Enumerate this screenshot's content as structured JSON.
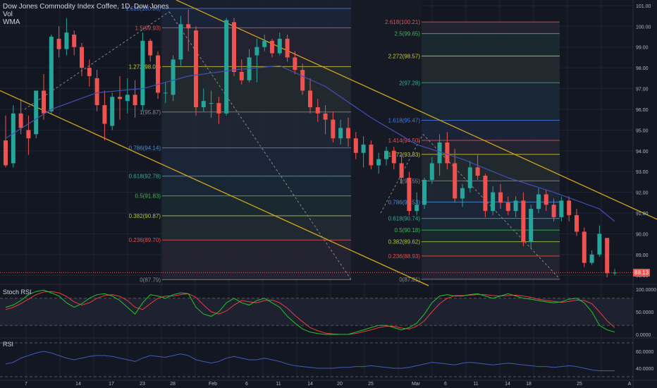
{
  "header": {
    "title": "Dow Jones Commodity Index Coffee, 1D, Dow Jones",
    "indicators": [
      "Vol",
      "WMA"
    ]
  },
  "colors": {
    "background": "#131722",
    "up": "#26a69a",
    "down": "#ef5350",
    "grid": "#1f2433",
    "axis_text": "#b2b5be",
    "channel": "#d4a71c",
    "wma": "#3f51b5",
    "stoch_k": "#26c726",
    "stoch_d": "#ef3b3b",
    "rsi": "#3f5cb5"
  },
  "price_axis": {
    "ticks": [
      "101.00",
      "100.00",
      "99.00",
      "98.00",
      "97.00",
      "96.00",
      "95.00",
      "94.00",
      "93.00",
      "92.00",
      "91.00",
      "90.00",
      "89.00",
      "88.00"
    ],
    "last_price": "88.13"
  },
  "stoch_axis": {
    "ticks": [
      "100.0000",
      "50.0000",
      "0.0000"
    ]
  },
  "rsi_axis": {
    "ticks": [
      "60.0000",
      "40.0000"
    ]
  },
  "time_axis": {
    "labels": [
      "7",
      "14",
      "17",
      "23",
      "28",
      "Feb",
      "6",
      "11",
      "14",
      "20",
      "25",
      "Mar",
      "6",
      "11",
      "14",
      "18",
      "25",
      "A"
    ]
  },
  "panes": {
    "stoch_label": "Stoch RSI",
    "rsi_label": "RSI"
  },
  "fib_left": {
    "levels": [
      {
        "label": "1.618(100.86)",
        "value": 100.86,
        "color": "#4a78d6"
      },
      {
        "label": "1.5(99.93)",
        "value": 99.93,
        "color": "#e05252"
      },
      {
        "label": "1.272(98.06)",
        "value": 98.06,
        "color": "#c8c83a"
      },
      {
        "label": "1(95.87)",
        "value": 95.87,
        "color": "#888888"
      },
      {
        "label": "0.786(94.14)",
        "value": 94.14,
        "color": "#4a8fd6"
      },
      {
        "label": "0.618(92.78)",
        "value": 92.78,
        "color": "#2fb0a0"
      },
      {
        "label": "0.5(91.83)",
        "value": 91.83,
        "color": "#3cbf4a"
      },
      {
        "label": "0.382(90.87)",
        "value": 90.87,
        "color": "#a8c84a"
      },
      {
        "label": "0.236(89.70)",
        "value": 89.7,
        "color": "#e05252"
      },
      {
        "label": "0(87.79)",
        "value": 87.79,
        "color": "#888888"
      }
    ]
  },
  "fib_right": {
    "levels": [
      {
        "label": "2.618(100.21)",
        "value": 100.21,
        "color": "#e05252"
      },
      {
        "label": "2.5(99.65)",
        "value": 99.65,
        "color": "#3cbf4a"
      },
      {
        "label": "2.272(98.57)",
        "value": 98.57,
        "color": "#c8c83a"
      },
      {
        "label": "2(97.28)",
        "value": 97.28,
        "color": "#2fb0a0"
      },
      {
        "label": "1.618(95.47)",
        "value": 95.47,
        "color": "#4a78d6"
      },
      {
        "label": "1.414(94.50)",
        "value": 94.5,
        "color": "#e05252"
      },
      {
        "label": "1.272(93.83)",
        "value": 93.83,
        "color": "#c8c83a"
      },
      {
        "label": "1(92.55)",
        "value": 92.55,
        "color": "#888888"
      },
      {
        "label": "0.786(91.53)",
        "value": 91.53,
        "color": "#4a8fd6"
      },
      {
        "label": "0.618(90.74)",
        "value": 90.74,
        "color": "#2fb0a0"
      },
      {
        "label": "0.5(90.18)",
        "value": 90.18,
        "color": "#3cbf4a"
      },
      {
        "label": "0.382(89.62)",
        "value": 89.62,
        "color": "#a8c84a"
      },
      {
        "label": "0.236(88.93)",
        "value": 88.93,
        "color": "#e05252"
      },
      {
        "label": "0(87.81)",
        "value": 87.81,
        "color": "#888888"
      }
    ]
  },
  "chart_data": {
    "type": "candlestick",
    "title": "Dow Jones Commodity Index Coffee, 1D, Dow Jones",
    "ylim": [
      87.6,
      101.2
    ],
    "candles": [
      [
        94.5,
        95.7,
        93.2,
        93.3
      ],
      [
        93.4,
        96.2,
        93.2,
        95.8
      ],
      [
        95.8,
        96.5,
        94.8,
        95.1
      ],
      [
        95.0,
        95.7,
        93.8,
        94.6
      ],
      [
        94.8,
        96.9,
        94.6,
        96.9
      ],
      [
        96.9,
        97.7,
        95.5,
        95.8
      ],
      [
        95.9,
        99.6,
        95.8,
        99.5
      ],
      [
        99.4,
        100.0,
        98.5,
        98.9
      ],
      [
        98.9,
        100.4,
        98.6,
        99.7
      ],
      [
        99.6,
        99.8,
        98.6,
        99.0
      ],
      [
        99.0,
        99.2,
        97.6,
        98.0
      ],
      [
        98.0,
        98.4,
        97.1,
        97.6
      ],
      [
        97.5,
        97.9,
        95.9,
        96.2
      ],
      [
        96.2,
        96.9,
        94.5,
        95.3
      ],
      [
        95.2,
        96.8,
        95.0,
        96.6
      ],
      [
        96.6,
        97.6,
        95.5,
        96.5
      ],
      [
        96.4,
        97.5,
        95.8,
        96.7
      ],
      [
        96.7,
        97.4,
        95.6,
        96.2
      ],
      [
        96.2,
        99.7,
        95.9,
        99.3
      ],
      [
        99.3,
        99.4,
        98.3,
        98.6
      ],
      [
        98.6,
        98.8,
        96.5,
        96.8
      ],
      [
        96.8,
        97.3,
        96.3,
        96.8
      ],
      [
        96.7,
        98.6,
        96.4,
        98.4
      ],
      [
        98.4,
        100.5,
        98.1,
        100.1
      ],
      [
        100.1,
        100.8,
        98.8,
        99.9
      ],
      [
        99.8,
        100.0,
        95.7,
        96.1
      ],
      [
        96.1,
        97.0,
        95.9,
        96.4
      ],
      [
        96.3,
        96.9,
        95.6,
        96.3
      ],
      [
        96.3,
        96.6,
        95.3,
        95.8
      ],
      [
        95.8,
        100.4,
        95.7,
        100.3
      ],
      [
        100.2,
        100.4,
        97.6,
        97.8
      ],
      [
        97.8,
        98.4,
        97.2,
        97.4
      ],
      [
        97.4,
        98.9,
        97.3,
        98.5
      ],
      [
        98.6,
        99.4,
        97.3,
        99.0
      ],
      [
        99.0,
        99.6,
        98.8,
        99.3
      ],
      [
        99.3,
        99.4,
        98.5,
        98.7
      ],
      [
        98.7,
        99.7,
        98.6,
        99.4
      ],
      [
        99.4,
        99.6,
        98.3,
        98.5
      ],
      [
        98.5,
        98.8,
        97.7,
        97.9
      ],
      [
        97.9,
        98.2,
        96.7,
        96.9
      ],
      [
        96.9,
        97.5,
        95.8,
        96.1
      ],
      [
        96.1,
        96.5,
        95.4,
        95.8
      ],
      [
        95.8,
        96.2,
        94.8,
        95.5
      ],
      [
        95.5,
        95.9,
        94.4,
        94.6
      ],
      [
        94.6,
        95.5,
        94.3,
        95.1
      ],
      [
        95.1,
        95.6,
        94.2,
        94.6
      ],
      [
        94.6,
        94.9,
        93.6,
        93.9
      ],
      [
        93.9,
        94.7,
        93.2,
        94.3
      ],
      [
        94.3,
        94.5,
        93.1,
        93.3
      ],
      [
        93.3,
        93.9,
        92.9,
        93.6
      ],
      [
        93.6,
        94.2,
        93.3,
        94.0
      ],
      [
        94.0,
        94.2,
        93.1,
        93.4
      ],
      [
        93.4,
        93.8,
        92.4,
        92.7
      ],
      [
        92.7,
        93.0,
        90.9,
        91.1
      ],
      [
        91.1,
        92.0,
        90.9,
        91.4
      ],
      [
        91.4,
        92.7,
        91.2,
        92.6
      ],
      [
        92.6,
        93.7,
        92.4,
        93.4
      ],
      [
        93.4,
        94.8,
        92.8,
        94.4
      ],
      [
        94.4,
        94.9,
        93.1,
        93.4
      ],
      [
        93.4,
        94.1,
        91.5,
        91.7
      ],
      [
        91.7,
        92.4,
        91.3,
        92.2
      ],
      [
        92.2,
        93.5,
        92.0,
        93.2
      ],
      [
        93.2,
        93.8,
        92.6,
        92.8
      ],
      [
        92.8,
        92.9,
        90.8,
        91.1
      ],
      [
        91.1,
        92.3,
        90.9,
        92.0
      ],
      [
        92.0,
        92.4,
        91.2,
        91.5
      ],
      [
        91.5,
        91.8,
        90.9,
        91.1
      ],
      [
        91.1,
        91.8,
        90.8,
        91.6
      ],
      [
        91.6,
        92.0,
        89.4,
        89.6
      ],
      [
        89.6,
        91.4,
        89.3,
        91.2
      ],
      [
        91.2,
        92.2,
        91.0,
        91.9
      ],
      [
        91.9,
        92.1,
        91.1,
        91.4
      ],
      [
        91.4,
        91.7,
        90.6,
        90.8
      ],
      [
        90.8,
        91.8,
        90.6,
        91.6
      ],
      [
        91.6,
        91.8,
        90.6,
        90.9
      ],
      [
        90.9,
        91.2,
        89.9,
        90.1
      ],
      [
        90.1,
        90.3,
        88.4,
        88.6
      ],
      [
        88.6,
        89.2,
        88.5,
        89.0
      ],
      [
        89.0,
        90.4,
        88.9,
        90.0
      ],
      [
        89.8,
        89.7,
        87.9,
        88.1
      ],
      [
        88.1,
        88.3,
        88.0,
        88.13
      ]
    ],
    "wma": [
      [
        0,
        94.6
      ],
      [
        6,
        96.0
      ],
      [
        12,
        96.8
      ],
      [
        18,
        97.0
      ],
      [
        24,
        97.6
      ],
      [
        30,
        97.9
      ],
      [
        36,
        98.1
      ],
      [
        42,
        97.1
      ],
      [
        48,
        95.6
      ],
      [
        54,
        94.3
      ],
      [
        60,
        93.6
      ],
      [
        66,
        92.7
      ],
      [
        72,
        92.0
      ],
      [
        78,
        91.2
      ],
      [
        80,
        90.6
      ]
    ],
    "stoch_rsi": {
      "k": [
        60,
        65,
        75,
        88,
        95,
        98,
        92,
        85,
        70,
        60,
        68,
        80,
        88,
        90,
        85,
        75,
        60,
        45,
        70,
        88,
        85,
        80,
        88,
        92,
        90,
        60,
        45,
        40,
        50,
        70,
        80,
        70,
        65,
        75,
        80,
        70,
        60,
        40,
        25,
        12,
        5,
        2,
        0,
        0,
        0,
        0,
        5,
        10,
        15,
        20,
        20,
        15,
        10,
        15,
        25,
        45,
        70,
        85,
        88,
        85,
        85,
        88,
        90,
        85,
        80,
        85,
        90,
        85,
        80,
        78,
        75,
        72,
        70,
        72,
        78,
        80,
        70,
        50,
        20,
        10,
        5
      ],
      "d": [
        55,
        60,
        68,
        78,
        88,
        94,
        95,
        92,
        84,
        72,
        65,
        70,
        80,
        86,
        88,
        84,
        75,
        60,
        55,
        68,
        80,
        85,
        85,
        88,
        90,
        82,
        65,
        50,
        45,
        52,
        65,
        75,
        72,
        70,
        75,
        76,
        70,
        58,
        42,
        28,
        15,
        8,
        3,
        1,
        0,
        0,
        2,
        6,
        10,
        15,
        18,
        18,
        14,
        12,
        18,
        30,
        50,
        68,
        80,
        86,
        86,
        87,
        88,
        88,
        86,
        85,
        86,
        87,
        85,
        82,
        78,
        75,
        73,
        71,
        73,
        76,
        75,
        68,
        50,
        30,
        15
      ]
    },
    "rsi": [
      45,
      47,
      52,
      55,
      58,
      60,
      58,
      55,
      52,
      50,
      52,
      54,
      55,
      55,
      54,
      52,
      50,
      48,
      52,
      55,
      54,
      53,
      55,
      57,
      55,
      50,
      48,
      46,
      48,
      52,
      54,
      52,
      50,
      50,
      52,
      50,
      48,
      45,
      43,
      42,
      41,
      40,
      40,
      40,
      41,
      41,
      42,
      42,
      43,
      42,
      41,
      40,
      40,
      41,
      43,
      45,
      47,
      46,
      45,
      44,
      46,
      47,
      46,
      45,
      44,
      45,
      46,
      45,
      44,
      43,
      42,
      42,
      41,
      42,
      43,
      42,
      40,
      38,
      37,
      37,
      37
    ]
  }
}
